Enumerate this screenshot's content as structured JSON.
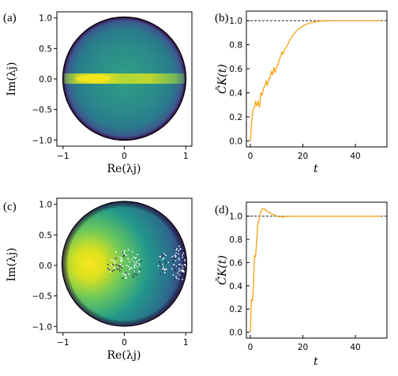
{
  "chart_data": [
    {
      "panel": "(a)",
      "type": "heatmap",
      "description_text": "eigenvalue density on unit disk",
      "xlabel": "Re(λj)",
      "ylabel": "Im(λj)",
      "xticks": [
        "−1",
        "0",
        "1"
      ],
      "yticks": [
        "−1.0",
        "−0.5",
        "0.0",
        "0.5",
        "1.0"
      ],
      "xlim": [
        -1.1,
        1.1
      ],
      "ylim": [
        -1.1,
        1.1
      ],
      "colors": {
        "low": "#2d1e5c",
        "mid": "#2a7f8e",
        "high": "#f2e51d",
        "edge": "#3d1556"
      }
    },
    {
      "panel": "(b)",
      "type": "line",
      "xlabel": "t",
      "ylabel": "C̃K(t)",
      "xticks": [
        "0",
        "20",
        "40"
      ],
      "yticks": [
        "0.0",
        "0.2",
        "0.4",
        "0.6",
        "0.8",
        "1.0"
      ],
      "xlim": [
        -1.5,
        52
      ],
      "ylim": [
        -0.05,
        1.08
      ],
      "reference_line": 1.0,
      "series": [
        {
          "color": "#f5a623",
          "x": [
            0,
            0.5,
            1,
            1.5,
            2,
            2.5,
            3,
            3.5,
            4,
            4.5,
            5,
            5.5,
            6,
            6.5,
            7,
            7.5,
            8,
            8.5,
            9,
            9.5,
            10,
            10.5,
            11,
            11.5,
            12,
            12.5,
            13,
            14,
            15,
            16,
            17,
            18,
            19,
            20,
            21,
            22,
            23,
            24,
            25,
            26,
            27,
            28,
            30,
            32,
            35,
            40,
            45,
            50
          ],
          "values": [
            0.0,
            0.15,
            0.26,
            0.27,
            0.33,
            0.29,
            0.33,
            0.28,
            0.4,
            0.38,
            0.44,
            0.45,
            0.5,
            0.46,
            0.52,
            0.52,
            0.58,
            0.55,
            0.61,
            0.57,
            0.62,
            0.63,
            0.68,
            0.7,
            0.74,
            0.72,
            0.76,
            0.79,
            0.84,
            0.87,
            0.9,
            0.925,
            0.94,
            0.955,
            0.967,
            0.976,
            0.983,
            0.988,
            0.992,
            0.995,
            0.997,
            0.998,
            0.999,
            1.0,
            1.0,
            1.0,
            1.0,
            1.0
          ]
        }
      ]
    },
    {
      "panel": "(c)",
      "type": "heatmap",
      "description_text": "eigenvalue density on unit disk",
      "xlabel": "Re(λj)",
      "ylabel": "Im(λj)",
      "xticks": [
        "−1",
        "0",
        "1"
      ],
      "yticks": [
        "−1.0",
        "−0.5",
        "0.0",
        "0.5",
        "1.0"
      ],
      "xlim": [
        -1.1,
        1.1
      ],
      "ylim": [
        -1.1,
        1.1
      ],
      "colors": {
        "low": "#2a5f8e",
        "mid": "#27a07e",
        "high": "#f4e520",
        "edge": "#3d1556"
      }
    },
    {
      "panel": "(d)",
      "type": "line",
      "xlabel": "t",
      "ylabel": "C̃K(t)",
      "xticks": [
        "0",
        "20",
        "40"
      ],
      "yticks": [
        "0.0",
        "0.2",
        "0.4",
        "0.6",
        "0.8",
        "1.0"
      ],
      "xlim": [
        -1.5,
        52
      ],
      "ylim": [
        -0.05,
        1.12
      ],
      "reference_line": 1.0,
      "series": [
        {
          "color": "#f5a623",
          "x": [
            0,
            0.4,
            0.8,
            1.2,
            1.6,
            2.0,
            2.4,
            2.8,
            3.2,
            3.6,
            4,
            4.5,
            5,
            5.5,
            6,
            6.5,
            7,
            7.5,
            8,
            9,
            10,
            11,
            12,
            13,
            14,
            16,
            18,
            20,
            25,
            30,
            35,
            40,
            45,
            50
          ],
          "values": [
            0.0,
            0.28,
            0.27,
            0.4,
            0.66,
            0.65,
            0.78,
            0.92,
            0.96,
            1.0,
            1.04,
            1.06,
            1.065,
            1.06,
            1.05,
            1.04,
            1.035,
            1.03,
            1.02,
            1.01,
            1.0,
            0.996,
            0.995,
            0.996,
            0.998,
            1.0,
            1.0,
            1.0,
            1.0,
            1.0,
            1.0,
            1.0,
            1.0,
            1.0
          ]
        }
      ]
    }
  ]
}
